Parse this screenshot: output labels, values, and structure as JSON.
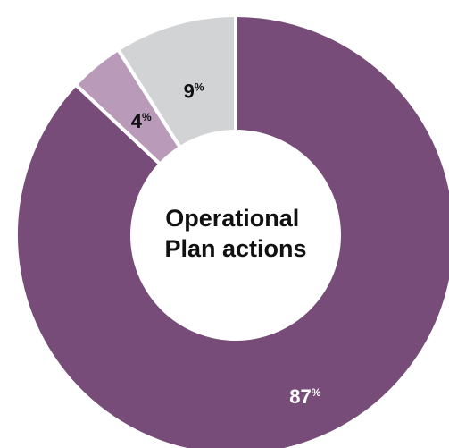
{
  "chart_data": {
    "type": "pie",
    "donut": true,
    "center_label": [
      "Operational",
      "Plan actions"
    ],
    "slices": [
      {
        "value": 87,
        "label_number": "87",
        "label_symbol": "%",
        "color": "#774c79",
        "label_color": "#ffffff"
      },
      {
        "value": 4,
        "label_number": "4",
        "label_symbol": "%",
        "color": "#b99ab9",
        "label_color": "#111111"
      },
      {
        "value": 9,
        "label_number": "9",
        "label_symbol": "%",
        "color": "#d2d3d5",
        "label_color": "#111111"
      }
    ],
    "start": "top",
    "direction": "clockwise"
  },
  "colors": {
    "separator": "#ffffff",
    "center_fill": "#ffffff"
  }
}
